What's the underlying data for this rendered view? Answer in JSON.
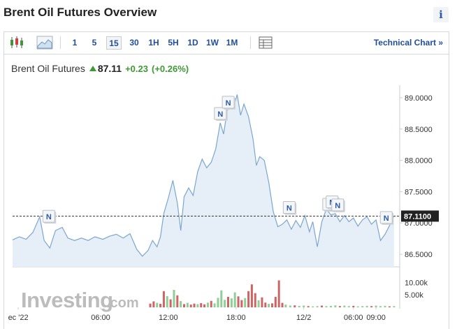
{
  "header": {
    "title": "Brent Oil Futures Overview",
    "info_label": "i"
  },
  "toolbar": {
    "timeframes": [
      {
        "label": "1",
        "active": false
      },
      {
        "label": "5",
        "active": false
      },
      {
        "label": "15",
        "active": true
      },
      {
        "label": "30",
        "active": false
      },
      {
        "label": "1H",
        "active": false
      },
      {
        "label": "5H",
        "active": false
      },
      {
        "label": "1D",
        "active": false
      },
      {
        "label": "1W",
        "active": false
      },
      {
        "label": "1M",
        "active": false
      }
    ],
    "icons": [
      "candlestick-icon",
      "area-chart-icon",
      "table-view-icon"
    ],
    "technical_chart_label": "Technical Chart »"
  },
  "quote": {
    "name": "Brent Oil Futures",
    "price": "87.11",
    "change": "+0.23",
    "change_pct": "(+0.26%)"
  },
  "watermark": {
    "brand": "Investing",
    "suffix": ".com"
  },
  "colors": {
    "line": "#7ba6cf",
    "fill": "#e6eff7",
    "up": "#3d9a33",
    "up_bar": "#8fcf97",
    "down_bar": "#cf6464",
    "link": "#1f4e9c"
  },
  "chart_data": {
    "type": "area",
    "ylim": [
      86.3,
      89.2
    ],
    "y_ticks": [
      89.0,
      88.5,
      88.0,
      87.5,
      87.0,
      86.5
    ],
    "y_tick_labels": [
      "89.0000",
      "88.5000",
      "88.0000",
      "87.5000",
      "87.0000",
      "86.5000"
    ],
    "last_value": 87.11,
    "last_value_label": "87.1100",
    "x_tick_labels": [
      {
        "label": "ec '22",
        "t": -1.3
      },
      {
        "label": "06:00",
        "t": 6
      },
      {
        "label": "12:00",
        "t": 12
      },
      {
        "label": "18:00",
        "t": 18
      },
      {
        "label": "12/2",
        "t": 24
      },
      {
        "label": "06:00",
        "t": 28.4
      },
      {
        "label": "09:00",
        "t": 30.4
      }
    ],
    "x_range": [
      -1.8,
      32.5
    ],
    "series": [
      {
        "values": [
          [
            -1.8,
            86.73
          ],
          [
            -1.2,
            86.78
          ],
          [
            -0.6,
            86.74
          ],
          [
            0,
            86.85
          ],
          [
            0.6,
            87.1
          ],
          [
            1.0,
            86.72
          ],
          [
            1.5,
            86.6
          ],
          [
            2.0,
            86.88
          ],
          [
            2.6,
            86.93
          ],
          [
            3.1,
            86.76
          ],
          [
            3.7,
            86.72
          ],
          [
            4.3,
            86.76
          ],
          [
            4.9,
            86.72
          ],
          [
            5.5,
            86.78
          ],
          [
            6.2,
            86.74
          ],
          [
            6.8,
            86.79
          ],
          [
            7.4,
            86.82
          ],
          [
            8.0,
            86.76
          ],
          [
            8.6,
            86.83
          ],
          [
            9.2,
            86.58
          ],
          [
            9.7,
            86.47
          ],
          [
            10.2,
            86.56
          ],
          [
            10.6,
            86.72
          ],
          [
            11.0,
            86.62
          ],
          [
            11.3,
            86.78
          ],
          [
            11.6,
            87.15
          ],
          [
            12.0,
            87.4
          ],
          [
            12.4,
            87.68
          ],
          [
            12.8,
            87.32
          ],
          [
            13.1,
            86.88
          ],
          [
            13.4,
            87.42
          ],
          [
            13.8,
            87.56
          ],
          [
            14.2,
            87.44
          ],
          [
            14.6,
            87.82
          ],
          [
            15.0,
            88.02
          ],
          [
            15.4,
            87.88
          ],
          [
            15.8,
            87.97
          ],
          [
            16.2,
            88.18
          ],
          [
            16.6,
            88.6
          ],
          [
            16.9,
            88.42
          ],
          [
            17.2,
            88.78
          ],
          [
            17.5,
            88.95
          ],
          [
            17.8,
            88.86
          ],
          [
            18.1,
            89.05
          ],
          [
            18.4,
            88.72
          ],
          [
            18.7,
            88.9
          ],
          [
            19.1,
            88.7
          ],
          [
            19.5,
            88.35
          ],
          [
            19.8,
            87.92
          ],
          [
            20.1,
            88.06
          ],
          [
            20.5,
            88.0
          ],
          [
            20.9,
            87.65
          ],
          [
            21.3,
            87.18
          ],
          [
            21.7,
            86.94
          ],
          [
            22.1,
            86.98
          ],
          [
            22.5,
            87.05
          ],
          [
            22.9,
            86.9
          ],
          [
            23.3,
            87.04
          ],
          [
            23.7,
            86.93
          ],
          [
            24.1,
            87.12
          ],
          [
            24.5,
            86.86
          ],
          [
            24.8,
            87.02
          ],
          [
            25.2,
            86.62
          ],
          [
            25.6,
            87.02
          ],
          [
            26.0,
            87.22
          ],
          [
            26.4,
            87.13
          ],
          [
            26.8,
            87.15
          ],
          [
            27.2,
            87.02
          ],
          [
            27.6,
            87.12
          ],
          [
            28.0,
            87.02
          ],
          [
            28.4,
            87.08
          ],
          [
            28.8,
            86.95
          ],
          [
            29.2,
            87.05
          ],
          [
            29.6,
            87.1
          ],
          [
            30.0,
            86.98
          ],
          [
            30.4,
            87.05
          ],
          [
            30.8,
            86.72
          ],
          [
            31.2,
            86.82
          ],
          [
            31.6,
            86.96
          ],
          [
            32.0,
            87.11
          ]
        ]
      }
    ],
    "news_markers": [
      {
        "label": "N",
        "t": 1.5,
        "v": 87.08
      },
      {
        "label": "N",
        "t": 16.7,
        "v": 88.72
      },
      {
        "label": "N",
        "t": 17.4,
        "v": 88.9
      },
      {
        "label": "N",
        "t": 22.8,
        "v": 87.22
      },
      {
        "label": "N",
        "t": 26.3,
        "v": 87.27
      },
      {
        "label": "N",
        "t": 26.6,
        "v": 87.31
      },
      {
        "label": "N",
        "t": 27.1,
        "v": 87.26
      },
      {
        "label": "N",
        "t": 31.4,
        "v": 87.06
      }
    ],
    "volume": {
      "ylim": [
        0,
        14000
      ],
      "y_tick_labels": [
        {
          "label": "10.00k",
          "v": 10000
        },
        {
          "label": "5.00k",
          "v": 5000
        }
      ],
      "bars": [
        [
          10.4,
          1500,
          "down"
        ],
        [
          10.7,
          2400,
          "down"
        ],
        [
          11.0,
          1800,
          "up"
        ],
        [
          11.3,
          1400,
          "down"
        ],
        [
          11.6,
          6500,
          "down"
        ],
        [
          11.9,
          4500,
          "up"
        ],
        [
          12.2,
          3200,
          "down"
        ],
        [
          12.5,
          7000,
          "up"
        ],
        [
          12.8,
          4800,
          "down"
        ],
        [
          13.1,
          2500,
          "up"
        ],
        [
          13.4,
          1300,
          "down"
        ],
        [
          13.7,
          1800,
          "up"
        ],
        [
          14.0,
          1100,
          "down"
        ],
        [
          14.3,
          1500,
          "down"
        ],
        [
          14.6,
          1300,
          "up"
        ],
        [
          14.9,
          1700,
          "down"
        ],
        [
          15.2,
          1200,
          "down"
        ],
        [
          15.5,
          1900,
          "up"
        ],
        [
          15.8,
          2600,
          "down"
        ],
        [
          16.1,
          1600,
          "up"
        ],
        [
          16.4,
          3800,
          "up"
        ],
        [
          16.7,
          6800,
          "up"
        ],
        [
          17.0,
          3000,
          "up"
        ],
        [
          17.3,
          4200,
          "down"
        ],
        [
          17.6,
          3600,
          "up"
        ],
        [
          17.9,
          6000,
          "up"
        ],
        [
          18.2,
          4400,
          "down"
        ],
        [
          18.5,
          2900,
          "down"
        ],
        [
          18.8,
          3700,
          "up"
        ],
        [
          19.1,
          6500,
          "down"
        ],
        [
          19.4,
          9200,
          "down"
        ],
        [
          19.7,
          5700,
          "down"
        ],
        [
          20.0,
          2800,
          "up"
        ],
        [
          20.3,
          4000,
          "down"
        ],
        [
          20.6,
          1900,
          "down"
        ],
        [
          20.9,
          1400,
          "up"
        ],
        [
          21.2,
          1600,
          "down"
        ],
        [
          21.5,
          4200,
          "down"
        ],
        [
          21.8,
          10800,
          "down"
        ],
        [
          22.1,
          1800,
          "down"
        ],
        [
          22.4,
          1100,
          "up"
        ],
        [
          22.8,
          700,
          "up"
        ],
        [
          23.2,
          800,
          "down"
        ],
        [
          23.6,
          600,
          "up"
        ],
        [
          24.0,
          700,
          "up"
        ],
        [
          24.4,
          500,
          "down"
        ],
        [
          24.8,
          400,
          "up"
        ],
        [
          25.2,
          500,
          "up"
        ],
        [
          25.6,
          700,
          "down"
        ],
        [
          26.0,
          500,
          "up"
        ],
        [
          26.4,
          600,
          "up"
        ],
        [
          26.8,
          800,
          "up"
        ],
        [
          27.2,
          500,
          "down"
        ],
        [
          27.6,
          700,
          "up"
        ],
        [
          28.0,
          500,
          "up"
        ],
        [
          28.4,
          600,
          "down"
        ],
        [
          28.8,
          400,
          "up"
        ],
        [
          29.2,
          500,
          "up"
        ],
        [
          29.6,
          600,
          "up"
        ],
        [
          30.0,
          500,
          "down"
        ],
        [
          30.4,
          700,
          "up"
        ],
        [
          30.8,
          500,
          "up"
        ],
        [
          31.2,
          600,
          "up"
        ],
        [
          31.6,
          400,
          "down"
        ],
        [
          32.0,
          500,
          "up"
        ]
      ]
    }
  }
}
